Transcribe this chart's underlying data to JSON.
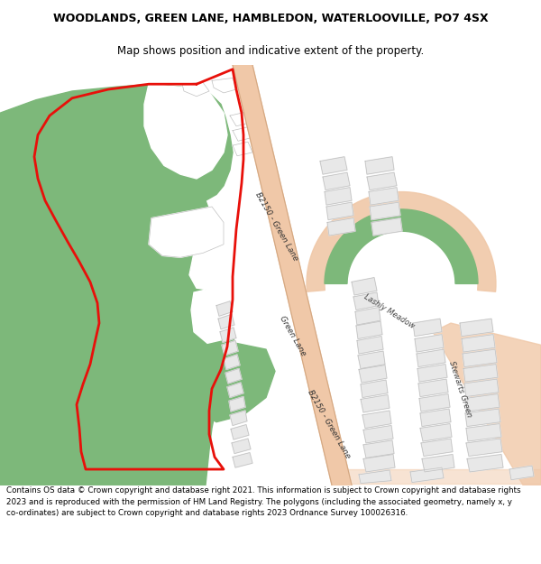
{
  "title_line1": "WOODLANDS, GREEN LANE, HAMBLEDON, WATERLOOVILLE, PO7 4SX",
  "title_line2": "Map shows position and indicative extent of the property.",
  "footer_text": "Contains OS data © Crown copyright and database right 2021. This information is subject to Crown copyright and database rights 2023 and is reproduced with the permission of HM Land Registry. The polygons (including the associated geometry, namely x, y co-ordinates) are subject to Crown copyright and database rights 2023 Ordnance Survey 100026316.",
  "bg_color": "#ffffff",
  "map_bg": "#f2f2f2",
  "green_color": "#7db87a",
  "road_color": "#f0c8a8",
  "road_edge": "#d4a882",
  "bldg_fill": "#e8e8e8",
  "bldg_stroke": "#c0c0c0",
  "red_color": "#e8100a",
  "title_fontsize": 9.0,
  "subtitle_fontsize": 8.5,
  "footer_fontsize": 6.3
}
